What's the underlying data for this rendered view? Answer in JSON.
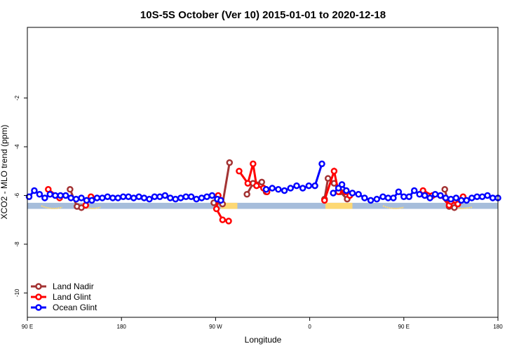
{
  "chart_data": {
    "type": "line",
    "title": "10S-5S October (Ver 10)   2015-01-01 to 2020-12-18",
    "xlabel": "Longitude",
    "ylabel": "XCO2 - MLO trend (ppm)",
    "xlim": [
      -90,
      180
    ],
    "ylim": [
      -11,
      0.9
    ],
    "x_ticks": [
      {
        "value": -90,
        "label": "90 E"
      },
      {
        "value": -36,
        "label": "180"
      },
      {
        "value": 18,
        "label": "90 W"
      },
      {
        "value": 72,
        "label": "0"
      },
      {
        "value": 126,
        "label": "90 E"
      },
      {
        "value": 180,
        "label": "180"
      }
    ],
    "y_ticks": [
      {
        "value": -2,
        "label": "-2"
      },
      {
        "value": -4,
        "label": "-4"
      },
      {
        "value": -6,
        "label": "-6"
      },
      {
        "value": -8,
        "label": "-8"
      },
      {
        "value": -10,
        "label": "-10"
      }
    ],
    "grid": false,
    "legend_position": "bottom-left",
    "land_band": {
      "y_range": [
        -6.55,
        -6.3
      ],
      "ocean_color": "#a6bddb",
      "land_color": "#fdd873",
      "land_segments": [
        [
          21,
          30.5
        ],
        [
          81,
          96.5
        ]
      ],
      "islands": [
        [
          -82,
          -70
        ],
        [
          -59,
          -48
        ],
        [
          114,
          126
        ],
        [
          150,
          165
        ]
      ]
    },
    "series": [
      {
        "name": "Land Nadir",
        "color": "#a33333",
        "segments": [
          [
            [
              -65.5,
              -5.75
            ],
            [
              -61.5,
              -6.45
            ],
            [
              -59,
              -6.5
            ]
          ],
          [
            [
              17,
              -6.3
            ],
            [
              22,
              -6.35
            ],
            [
              26,
              -4.65
            ]
          ],
          [
            [
              36,
              -5.95
            ],
            [
              39.5,
              -5.5
            ],
            [
              44.5,
              -5.45
            ],
            [
              47,
              -5.85
            ]
          ],
          [
            [
              80.5,
              -6.15
            ],
            [
              82.5,
              -5.3
            ],
            [
              86,
              -5.5
            ],
            [
              89.5,
              -5.85
            ],
            [
              93.5,
              -6.15
            ]
          ],
          [
            [
              149.5,
              -5.75
            ],
            [
              152,
              -6.45
            ],
            [
              155,
              -6.5
            ]
          ]
        ]
      },
      {
        "name": "Land Glint",
        "color": "#ff0000",
        "segments": [
          [
            [
              -78,
              -5.75
            ],
            [
              -71.5,
              -6.1
            ]
          ],
          [
            [
              -56.5,
              -6.4
            ],
            [
              -53.5,
              -6.05
            ]
          ],
          [
            [
              19.5,
              -6.0
            ],
            [
              18.5,
              -6.55
            ],
            [
              22,
              -7.0
            ],
            [
              25.5,
              -7.05
            ]
          ],
          [
            [
              31.5,
              -5.0
            ],
            [
              36.5,
              -5.5
            ],
            [
              39.5,
              -4.7
            ],
            [
              41.5,
              -5.6
            ],
            [
              45.5,
              -5.7
            ],
            [
              47.5,
              -5.85
            ]
          ],
          [
            [
              80.5,
              -6.2
            ],
            [
              86,
              -5.0
            ],
            [
              88.5,
              -5.85
            ],
            [
              92.5,
              -5.85
            ],
            [
              95,
              -6.0
            ]
          ],
          [
            [
              137,
              -5.8
            ],
            [
              142.5,
              -6.0
            ],
            [
              147,
              -6.0
            ],
            [
              152,
              -6.4
            ]
          ],
          [
            [
              153,
              -6.25
            ],
            [
              157,
              -6.35
            ],
            [
              160,
              -6.05
            ]
          ]
        ]
      },
      {
        "name": "Ocean Glint",
        "color": "#0000ff",
        "segments": [
          [
            [
              -89,
              -6.05
            ],
            [
              -86,
              -5.8
            ],
            [
              -83,
              -5.95
            ],
            [
              -80,
              -6.1
            ],
            [
              -77,
              -5.95
            ],
            [
              -74,
              -6.0
            ],
            [
              -71,
              -6.0
            ],
            [
              -68,
              -6.0
            ],
            [
              -65,
              -6.1
            ],
            [
              -62,
              -6.15
            ],
            [
              -59,
              -6.1
            ],
            [
              -56,
              -6.2
            ],
            [
              -53,
              -6.2
            ],
            [
              -50,
              -6.1
            ],
            [
              -47,
              -6.1
            ],
            [
              -44,
              -6.05
            ],
            [
              -41,
              -6.1
            ],
            [
              -38,
              -6.1
            ],
            [
              -35,
              -6.05
            ],
            [
              -32,
              -6.05
            ],
            [
              -29,
              -6.1
            ],
            [
              -26,
              -6.05
            ],
            [
              -23,
              -6.1
            ],
            [
              -20,
              -6.15
            ],
            [
              -17,
              -6.05
            ],
            [
              -14,
              -6.05
            ],
            [
              -11,
              -6.0
            ],
            [
              -8,
              -6.1
            ],
            [
              -5,
              -6.15
            ],
            [
              -2,
              -6.1
            ],
            [
              1,
              -6.05
            ],
            [
              4,
              -6.05
            ],
            [
              7,
              -6.15
            ],
            [
              10,
              -6.1
            ],
            [
              13,
              -6.05
            ],
            [
              16,
              -6.0
            ],
            [
              19,
              -6.15
            ],
            [
              21,
              -6.2
            ]
          ],
          [
            [
              47,
              -5.75
            ],
            [
              50.5,
              -5.7
            ],
            [
              54,
              -5.75
            ],
            [
              57.5,
              -5.8
            ],
            [
              61,
              -5.7
            ],
            [
              64.5,
              -5.6
            ],
            [
              68,
              -5.7
            ],
            [
              71.5,
              -5.6
            ],
            [
              75,
              -5.6
            ],
            [
              79,
              -4.7
            ]
          ],
          [
            [
              85.5,
              -5.9
            ],
            [
              88.5,
              -5.7
            ],
            [
              90.5,
              -5.55
            ],
            [
              93,
              -5.8
            ],
            [
              96.5,
              -5.9
            ],
            [
              100,
              -5.95
            ],
            [
              103.5,
              -6.1
            ],
            [
              107,
              -6.2
            ],
            [
              110.5,
              -6.15
            ],
            [
              114,
              -6.05
            ],
            [
              117,
              -6.1
            ],
            [
              120,
              -6.1
            ],
            [
              123,
              -5.85
            ],
            [
              126,
              -6.05
            ],
            [
              129,
              -6.05
            ],
            [
              132,
              -5.8
            ],
            [
              135,
              -5.95
            ],
            [
              138,
              -6.0
            ],
            [
              141,
              -6.1
            ],
            [
              144,
              -5.95
            ],
            [
              147,
              -6.0
            ],
            [
              150,
              -6.1
            ],
            [
              153,
              -6.15
            ],
            [
              156,
              -6.1
            ],
            [
              159,
              -6.2
            ],
            [
              162,
              -6.2
            ],
            [
              165,
              -6.1
            ],
            [
              168,
              -6.05
            ],
            [
              171,
              -6.05
            ],
            [
              174,
              -6.0
            ],
            [
              177,
              -6.1
            ],
            [
              180,
              -6.1
            ]
          ]
        ]
      }
    ]
  }
}
